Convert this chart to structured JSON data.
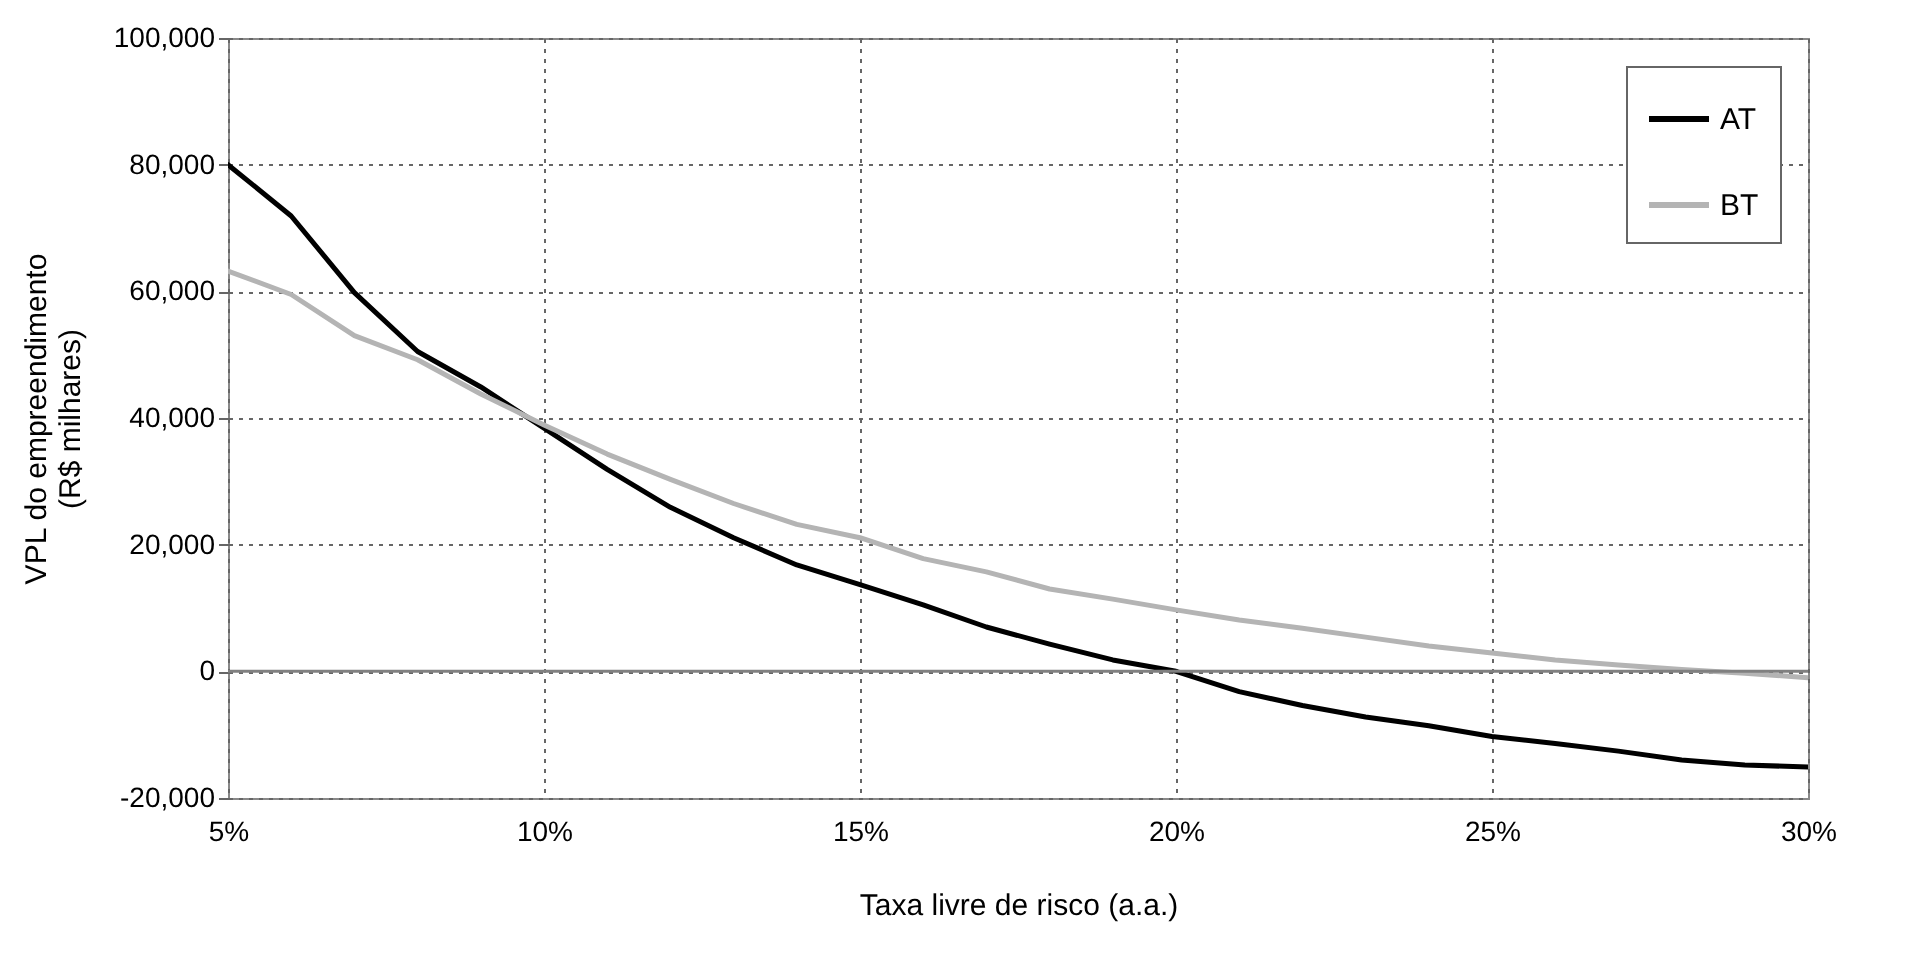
{
  "chart_data": {
    "type": "line",
    "xlabel": "Taxa livre de risco (a.a.)",
    "ylabel": "VPL do empreendimento\n(R$ milhares)",
    "x": [
      5,
      6,
      7,
      8,
      9,
      10,
      11,
      12,
      13,
      14,
      15,
      16,
      17,
      18,
      19,
      20,
      21,
      22,
      23,
      24,
      25,
      26,
      27,
      28,
      29,
      30
    ],
    "series": [
      {
        "name": "AT",
        "color": "#000000",
        "values": [
          80000,
          71900,
          59800,
          50500,
          44900,
          38400,
          31900,
          25900,
          21100,
          16800,
          13700,
          10500,
          7000,
          4300,
          1800,
          0,
          -3200,
          -5400,
          -7200,
          -8600,
          -10300,
          -11400,
          -12600,
          -14000,
          -14800,
          -15100
        ]
      },
      {
        "name": "BT",
        "color": "#b4b4b4",
        "values": [
          63200,
          59500,
          53000,
          49200,
          43800,
          38900,
          34300,
          30300,
          26500,
          23200,
          21100,
          17800,
          15700,
          13000,
          11400,
          9700,
          8100,
          6800,
          5400,
          4000,
          2900,
          1800,
          1000,
          300,
          -300,
          -1000
        ]
      }
    ],
    "xlim": [
      5,
      30
    ],
    "xticks": [
      {
        "value": 5,
        "label": "5%"
      },
      {
        "value": 10,
        "label": "10%"
      },
      {
        "value": 15,
        "label": "15%"
      },
      {
        "value": 20,
        "label": "20%"
      },
      {
        "value": 25,
        "label": "25%"
      },
      {
        "value": 30,
        "label": "30%"
      }
    ],
    "ylim": [
      -20000,
      100000
    ],
    "yticks": [
      {
        "value": -20000,
        "label": "-20,000"
      },
      {
        "value": 0,
        "label": "0"
      },
      {
        "value": 20000,
        "label": "20,000"
      },
      {
        "value": 40000,
        "label": "40,000"
      },
      {
        "value": 60000,
        "label": "60,000"
      },
      {
        "value": 80000,
        "label": "80,000"
      },
      {
        "value": 100000,
        "label": "100,000"
      }
    ],
    "ref_lines": [
      {
        "axis": "y",
        "value": 0,
        "color": "#808080"
      }
    ],
    "grid": true,
    "legend": "top right",
    "line_style": "solid"
  }
}
